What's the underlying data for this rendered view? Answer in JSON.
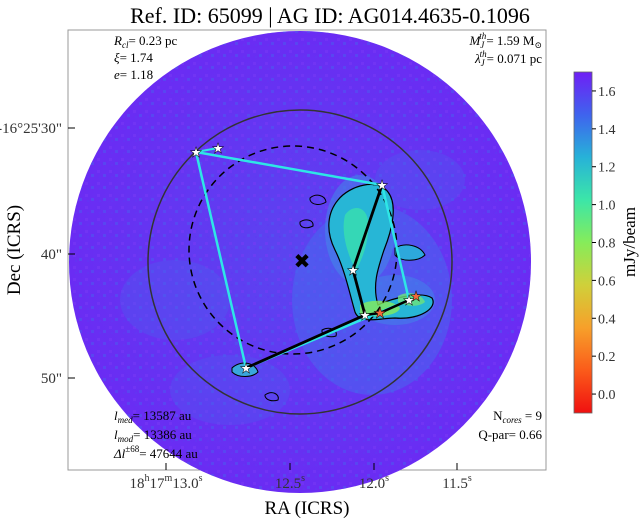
{
  "chart_data": {
    "type": "heatmap",
    "title": "Ref. ID: 65099 | AG ID: AG014.4635-0.1096",
    "xlabel": "RA (ICRS)",
    "ylabel": "Dec (ICRS)",
    "x_ticks": [
      {
        "base": "18",
        "h": "h",
        "m17": "17",
        "m": "m",
        "s13": "13.0",
        "s": "s"
      },
      {
        "base": "12.5",
        "s": "s"
      },
      {
        "base": "12.0",
        "s": "s"
      },
      {
        "base": "11.5",
        "s": "s"
      }
    ],
    "y_ticks": [
      "-16°25'30\"",
      "40\"",
      "50\""
    ],
    "colorbar": {
      "label": "mJy/beam",
      "ticks": [
        "1.6",
        "1.4",
        "1.2",
        "1.0",
        "0.8",
        "0.6",
        "0.4",
        "0.2",
        "0.0"
      ],
      "range": [
        -0.1,
        1.7
      ],
      "colors": [
        "#6f1ff5",
        "#3f63ee",
        "#27b2d8",
        "#3ce6a8",
        "#86ec5a",
        "#d0d03a",
        "#f7a02a",
        "#fb5b1a",
        "#f01010"
      ]
    },
    "annotations": {
      "top_left": [
        "R_cl = 0.23 pc",
        "ξ = 1.74",
        "e = 1.18"
      ],
      "top_right": [
        "M_J^th = 1.59 M⊙",
        "λ_J^th = 0.071 pc"
      ],
      "bottom_left": [
        "l_med = 13587 au",
        "l_mod = 13386 au",
        "Δl^±68 = 47644 au"
      ],
      "bottom_right": [
        "N_cores = 9",
        "Q-par = 0.66"
      ]
    },
    "parts": {
      "rcl": {
        "sym": "R",
        "sub": "cl",
        "val": "= 0.23 pc"
      },
      "xi": {
        "sym": "ξ",
        "val": "= 1.74"
      },
      "e": {
        "sym": "e",
        "val": "= 1.18"
      },
      "mj": {
        "sym": "M",
        "sub": "J",
        "sup": "th",
        "val": "= 1.59 M",
        "unit": "⊙"
      },
      "lj": {
        "sym": "λ",
        "sub": "J",
        "sup": "th",
        "val": "= 0.071 pc"
      },
      "lmed": {
        "sym": "l",
        "sub": "med",
        "val": "= 13587 au"
      },
      "lmod": {
        "sym": "l",
        "sub": "mod",
        "val": "= 13386 au"
      },
      "dl": {
        "sym": "Δl",
        "sup": "±68",
        "val": "= 47644 au"
      },
      "ncores": {
        "sym": "N",
        "sub": "cores",
        "val": " = 9"
      },
      "qpar": {
        "text": "Q-par= 0.66"
      }
    }
  }
}
